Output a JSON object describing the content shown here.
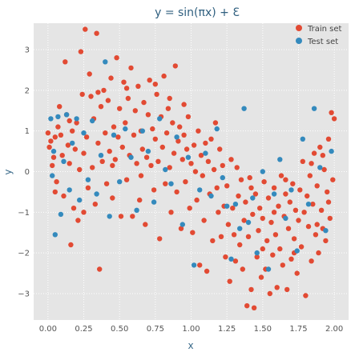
{
  "chart_data": {
    "type": "scatter",
    "title": "y = sin(πx) + Ɛ",
    "xlabel": "x",
    "ylabel": "y",
    "xlim": [
      -0.1,
      2.1
    ],
    "ylim": [
      -3.65,
      3.65
    ],
    "xticks": [
      0.0,
      0.25,
      0.5,
      0.75,
      1.0,
      1.25,
      1.5,
      1.75,
      2.0
    ],
    "xtick_labels": [
      "0.00",
      "0.25",
      "0.50",
      "0.75",
      "1.00",
      "1.25",
      "1.50",
      "1.75",
      "2.00"
    ],
    "yticks": [
      -3,
      -2,
      -1,
      0,
      1,
      2,
      3
    ],
    "ytick_labels": [
      "−3",
      "−2",
      "−1",
      "0",
      "1",
      "2",
      "3"
    ],
    "grid": true,
    "legend_position": "top-right",
    "series": [
      {
        "name": "Train set",
        "color": "#e24a33",
        "points": [
          [
            0.0,
            0.95
          ],
          [
            0.01,
            0.6
          ],
          [
            0.02,
            0.75
          ],
          [
            0.03,
            0.15
          ],
          [
            0.04,
            0.35
          ],
          [
            0.05,
            0.85
          ],
          [
            0.06,
            -0.25
          ],
          [
            0.07,
            1.1
          ],
          [
            0.08,
            1.6
          ],
          [
            0.09,
            0.9
          ],
          [
            0.1,
            0.4
          ],
          [
            0.11,
            -0.6
          ],
          [
            0.12,
            2.7
          ],
          [
            0.13,
            1.4
          ],
          [
            0.14,
            0.65
          ],
          [
            0.15,
            0.2
          ],
          [
            0.16,
            -1.8
          ],
          [
            0.17,
            1.0
          ],
          [
            0.18,
            -0.9
          ],
          [
            0.19,
            0.55
          ],
          [
            0.2,
            1.2
          ],
          [
            0.21,
            -1.2
          ],
          [
            0.22,
            0.05
          ],
          [
            0.23,
            2.95
          ],
          [
            0.24,
            1.9
          ],
          [
            0.25,
            0.45
          ],
          [
            0.26,
            3.5
          ],
          [
            0.27,
            0.85
          ],
          [
            0.28,
            -0.4
          ],
          [
            0.29,
            2.4
          ],
          [
            0.3,
            1.85
          ],
          [
            0.31,
            0.1
          ],
          [
            0.32,
            1.3
          ],
          [
            0.33,
            -0.8
          ],
          [
            0.34,
            3.4
          ],
          [
            0.35,
            0.7
          ],
          [
            0.36,
            -2.4
          ],
          [
            0.37,
            1.6
          ],
          [
            0.38,
            0.25
          ],
          [
            0.39,
            2.0
          ],
          [
            0.4,
            0.95
          ],
          [
            0.41,
            -0.3
          ],
          [
            0.42,
            1.75
          ],
          [
            0.43,
            0.5
          ],
          [
            0.44,
            2.3
          ],
          [
            0.45,
            -0.65
          ],
          [
            0.46,
            1.1
          ],
          [
            0.47,
            0.3
          ],
          [
            0.48,
            2.8
          ],
          [
            0.49,
            0.85
          ],
          [
            0.5,
            1.55
          ],
          [
            0.51,
            -1.1
          ],
          [
            0.52,
            0.6
          ],
          [
            0.53,
            2.2
          ],
          [
            0.54,
            1.2
          ],
          [
            0.55,
            -0.2
          ],
          [
            0.56,
            1.8
          ],
          [
            0.57,
            0.4
          ],
          [
            0.58,
            2.55
          ],
          [
            0.59,
            -1.1
          ],
          [
            0.6,
            0.9
          ],
          [
            0.61,
            1.5
          ],
          [
            0.62,
            0.2
          ],
          [
            0.63,
            2.1
          ],
          [
            0.64,
            -0.7
          ],
          [
            0.65,
            1.0
          ],
          [
            0.66,
            0.55
          ],
          [
            0.67,
            1.7
          ],
          [
            0.68,
            -1.3
          ],
          [
            0.69,
            0.35
          ],
          [
            0.7,
            1.4
          ],
          [
            0.71,
            2.25
          ],
          [
            0.72,
            0.15
          ],
          [
            0.73,
            1.05
          ],
          [
            0.74,
            -0.45
          ],
          [
            0.75,
            0.8
          ],
          [
            0.76,
            1.9
          ],
          [
            0.77,
            0.25
          ],
          [
            0.78,
            -1.65
          ],
          [
            0.79,
            1.35
          ],
          [
            0.8,
            0.6
          ],
          [
            0.81,
            2.35
          ],
          [
            0.82,
            -0.3
          ],
          [
            0.83,
            0.95
          ],
          [
            0.84,
            1.55
          ],
          [
            0.85,
            0.1
          ],
          [
            0.86,
            -1.0
          ],
          [
            0.87,
            1.2
          ],
          [
            0.88,
            0.45
          ],
          [
            0.89,
            2.6
          ],
          [
            0.9,
            -0.5
          ],
          [
            0.91,
            0.75
          ],
          [
            0.92,
            1.1
          ],
          [
            0.93,
            -1.4
          ],
          [
            0.94,
            0.3
          ],
          [
            0.95,
            0.9
          ],
          [
            0.96,
            -0.25
          ],
          [
            0.97,
            0.55
          ],
          [
            0.98,
            1.35
          ],
          [
            0.99,
            -0.9
          ],
          [
            1.0,
            0.2
          ],
          [
            1.01,
            -1.5
          ],
          [
            1.02,
            0.65
          ],
          [
            1.03,
            0.0
          ],
          [
            1.04,
            -0.7
          ],
          [
            1.05,
            1.0
          ],
          [
            1.06,
            -2.3
          ],
          [
            1.07,
            0.4
          ],
          [
            1.08,
            -0.1
          ],
          [
            1.09,
            -1.2
          ],
          [
            1.1,
            0.7
          ],
          [
            1.11,
            -2.45
          ],
          [
            1.12,
            0.25
          ],
          [
            1.13,
            -0.55
          ],
          [
            1.14,
            0.8
          ],
          [
            1.15,
            -1.7
          ],
          [
            1.16,
            0.05
          ],
          [
            1.17,
            1.2
          ],
          [
            1.18,
            -0.4
          ],
          [
            1.19,
            -1.0
          ],
          [
            1.2,
            0.55
          ],
          [
            1.21,
            -1.6
          ],
          [
            1.22,
            0.15
          ],
          [
            1.23,
            -0.85
          ],
          [
            1.24,
            -2.1
          ],
          [
            1.25,
            -0.35
          ],
          [
            1.26,
            -1.3
          ],
          [
            1.27,
            -2.7
          ],
          [
            1.28,
            0.3
          ],
          [
            1.29,
            -0.9
          ],
          [
            1.3,
            -1.55
          ],
          [
            1.31,
            -2.2
          ],
          [
            1.32,
            0.1
          ],
          [
            1.33,
            -0.6
          ],
          [
            1.34,
            -1.8
          ],
          [
            1.35,
            -0.2
          ],
          [
            1.36,
            -2.4
          ],
          [
            1.37,
            -1.2
          ],
          [
            1.38,
            -0.75
          ],
          [
            1.39,
            -3.3
          ],
          [
            1.4,
            -1.6
          ],
          [
            1.41,
            -0.15
          ],
          [
            1.42,
            -2.9
          ],
          [
            1.43,
            -1.05
          ],
          [
            1.44,
            -3.35
          ],
          [
            1.45,
            -0.55
          ],
          [
            1.46,
            -2.1
          ],
          [
            1.47,
            -1.45
          ],
          [
            1.48,
            -0.9
          ],
          [
            1.49,
            -2.6
          ],
          [
            1.5,
            -1.15
          ],
          [
            1.51,
            -0.25
          ],
          [
            1.52,
            -2.4
          ],
          [
            1.53,
            -1.7
          ],
          [
            1.54,
            -0.65
          ],
          [
            1.55,
            -3.0
          ],
          [
            1.56,
            -1.25
          ],
          [
            1.57,
            -2.05
          ],
          [
            1.58,
            -0.4
          ],
          [
            1.59,
            -1.55
          ],
          [
            1.6,
            -2.85
          ],
          [
            1.61,
            -0.85
          ],
          [
            1.62,
            -1.9
          ],
          [
            1.63,
            -0.1
          ],
          [
            1.64,
            -2.3
          ],
          [
            1.65,
            -1.1
          ],
          [
            1.66,
            -0.55
          ],
          [
            1.67,
            -2.9
          ],
          [
            1.68,
            -1.4
          ],
          [
            1.69,
            -0.75
          ],
          [
            1.7,
            -2.15
          ],
          [
            1.71,
            -0.3
          ],
          [
            1.72,
            -1.65
          ],
          [
            1.73,
            -0.95
          ],
          [
            1.74,
            -2.5
          ],
          [
            1.75,
            -1.2
          ],
          [
            1.76,
            -0.45
          ],
          [
            1.77,
            -1.85
          ],
          [
            1.78,
            0.25
          ],
          [
            1.79,
            -1.0
          ],
          [
            1.8,
            -3.05
          ],
          [
            1.81,
            -0.6
          ],
          [
            1.82,
            -1.35
          ],
          [
            1.83,
            -0.1
          ],
          [
            1.84,
            -2.2
          ],
          [
            1.85,
            -0.8
          ],
          [
            1.86,
            0.45
          ],
          [
            1.87,
            -1.55
          ],
          [
            1.88,
            -0.35
          ],
          [
            1.89,
            -2.0
          ],
          [
            1.9,
            0.6
          ],
          [
            1.91,
            -0.95
          ],
          [
            1.92,
            -1.4
          ],
          [
            1.93,
            0.05
          ],
          [
            1.94,
            -1.7
          ],
          [
            1.95,
            -0.5
          ],
          [
            1.96,
            0.8
          ],
          [
            1.97,
            -1.15
          ],
          [
            1.98,
            1.45
          ],
          [
            1.99,
            -0.2
          ],
          [
            2.0,
            1.3
          ],
          [
            1.96,
            -0.75
          ],
          [
            1.92,
            0.4
          ],
          [
            1.88,
            -1.3
          ],
          [
            1.84,
            0.2
          ],
          [
            1.72,
            -2.0
          ],
          [
            1.66,
            -0.2
          ],
          [
            1.58,
            -1.0
          ],
          [
            1.5,
            -1.9
          ],
          [
            1.42,
            -0.4
          ],
          [
            0.05,
            -0.5
          ],
          [
            0.15,
            1.25
          ],
          [
            0.25,
            -1.0
          ],
          [
            0.35,
            1.95
          ],
          [
            0.45,
            0.15
          ],
          [
            0.55,
            2.05
          ],
          [
            0.65,
            -0.1
          ],
          [
            0.75,
            2.15
          ],
          [
            0.85,
            1.8
          ],
          [
            0.95,
            1.65
          ]
        ]
      },
      {
        "name": "Test set",
        "color": "#348abd",
        "points": [
          [
            0.02,
            1.3
          ],
          [
            0.03,
            -0.1
          ],
          [
            0.04,
            0.5
          ],
          [
            0.05,
            -1.55
          ],
          [
            0.07,
            1.35
          ],
          [
            0.09,
            -1.05
          ],
          [
            0.11,
            0.25
          ],
          [
            0.13,
            1.4
          ],
          [
            0.15,
            -0.45
          ],
          [
            0.17,
            0.7
          ],
          [
            0.2,
            1.3
          ],
          [
            0.22,
            -0.7
          ],
          [
            0.25,
            0.95
          ],
          [
            0.28,
            -0.2
          ],
          [
            0.31,
            1.25
          ],
          [
            0.34,
            -0.55
          ],
          [
            0.37,
            0.4
          ],
          [
            0.4,
            2.7
          ],
          [
            0.43,
            -1.1
          ],
          [
            0.46,
            0.9
          ],
          [
            0.5,
            -0.25
          ],
          [
            0.54,
            1.05
          ],
          [
            0.58,
            0.35
          ],
          [
            0.62,
            -0.95
          ],
          [
            0.66,
            1.0
          ],
          [
            0.7,
            0.5
          ],
          [
            0.74,
            -0.75
          ],
          [
            0.78,
            1.3
          ],
          [
            0.82,
            0.05
          ],
          [
            0.86,
            -0.3
          ],
          [
            0.9,
            0.85
          ],
          [
            0.94,
            -1.3
          ],
          [
            0.98,
            0.35
          ],
          [
            1.02,
            -2.3
          ],
          [
            1.06,
            -0.45
          ],
          [
            1.1,
            0.45
          ],
          [
            1.14,
            -0.6
          ],
          [
            1.18,
            1.05
          ],
          [
            1.22,
            -0.15
          ],
          [
            1.25,
            -0.85
          ],
          [
            1.28,
            -2.15
          ],
          [
            1.31,
            -0.8
          ],
          [
            1.34,
            -1.4
          ],
          [
            1.37,
            1.55
          ],
          [
            1.4,
            -1.25
          ],
          [
            1.43,
            -0.65
          ],
          [
            1.46,
            -2.0
          ],
          [
            1.5,
            0.0
          ],
          [
            1.54,
            -2.4
          ],
          [
            1.58,
            -0.55
          ],
          [
            1.62,
            0.3
          ],
          [
            1.66,
            -1.15
          ],
          [
            1.7,
            -0.45
          ],
          [
            1.74,
            -1.95
          ],
          [
            1.78,
            0.8
          ],
          [
            1.82,
            -0.8
          ],
          [
            1.86,
            1.55
          ],
          [
            1.9,
            0.1
          ],
          [
            1.94,
            -1.45
          ],
          [
            1.98,
            0.5
          ]
        ]
      }
    ]
  }
}
